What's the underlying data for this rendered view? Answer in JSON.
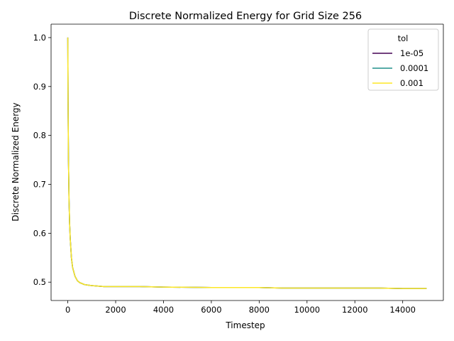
{
  "chart_data": {
    "type": "line",
    "title": "Discrete Normalized Energy for Grid Size 256",
    "xlabel": "Timestep",
    "ylabel": "Discrete Normalized Energy",
    "xlim": [
      -700,
      15700
    ],
    "ylim": [
      0.4625,
      1.0275
    ],
    "xticks": [
      0,
      2000,
      4000,
      6000,
      8000,
      10000,
      12000,
      14000
    ],
    "xtick_labels": [
      "0",
      "2000",
      "4000",
      "6000",
      "8000",
      "10000",
      "12000",
      "14000"
    ],
    "yticks": [
      0.5,
      0.6,
      0.7,
      0.8,
      0.9,
      1.0
    ],
    "ytick_labels": [
      "0.5",
      "0.6",
      "0.7",
      "0.8",
      "0.9",
      "1.0"
    ],
    "grid": false,
    "legend": {
      "title": "tol",
      "placement": "top-right"
    },
    "series": [
      {
        "name": "1e-05",
        "color": "#440154",
        "x": [
          0,
          10,
          25,
          50,
          75,
          100,
          150,
          200,
          300,
          400,
          500,
          700,
          1000,
          1500,
          2000,
          3000,
          4000,
          6000,
          8000,
          9000,
          10000,
          12000,
          13000,
          14000,
          15000
        ],
        "y": [
          1.0,
          0.87,
          0.76,
          0.67,
          0.62,
          0.59,
          0.55,
          0.53,
          0.512,
          0.503,
          0.499,
          0.495,
          0.493,
          0.491,
          0.491,
          0.491,
          0.49,
          0.489,
          0.489,
          0.488,
          0.488,
          0.488,
          0.488,
          0.487,
          0.487
        ]
      },
      {
        "name": "0.0001",
        "color": "#21918c",
        "x": [
          0,
          10,
          25,
          50,
          75,
          100,
          150,
          200,
          300,
          400,
          500,
          700,
          1000,
          1500,
          2000,
          3000,
          4000,
          6000,
          8000,
          9000,
          10000,
          12000,
          13000,
          14000,
          15000
        ],
        "y": [
          1.0,
          0.87,
          0.76,
          0.67,
          0.62,
          0.59,
          0.55,
          0.53,
          0.512,
          0.503,
          0.499,
          0.495,
          0.493,
          0.491,
          0.491,
          0.491,
          0.49,
          0.489,
          0.489,
          0.488,
          0.488,
          0.488,
          0.488,
          0.487,
          0.487
        ]
      },
      {
        "name": "0.001",
        "color": "#fde725",
        "x": [
          0,
          10,
          25,
          50,
          75,
          100,
          150,
          200,
          300,
          400,
          500,
          700,
          1000,
          1500,
          2000,
          3000,
          4000,
          6000,
          8000,
          9000,
          10000,
          12000,
          13000,
          14000,
          15000
        ],
        "y": [
          1.0,
          0.87,
          0.76,
          0.67,
          0.62,
          0.59,
          0.55,
          0.53,
          0.512,
          0.503,
          0.499,
          0.495,
          0.493,
          0.491,
          0.491,
          0.491,
          0.49,
          0.489,
          0.489,
          0.488,
          0.488,
          0.488,
          0.488,
          0.487,
          0.487
        ]
      }
    ]
  }
}
